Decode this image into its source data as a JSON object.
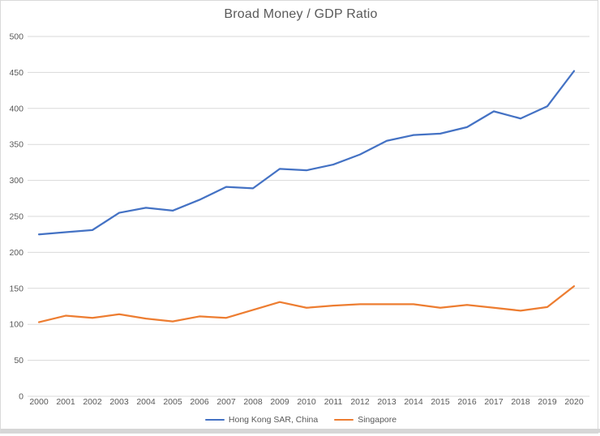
{
  "frame": {
    "background": "#ffffff",
    "border_color": "#d9d9d9",
    "bottom_edge_color": "#d6d6d6"
  },
  "chart_data": {
    "type": "line",
    "title": "Broad Money / GDP Ratio",
    "xlabel": "",
    "ylabel": "",
    "x": [
      "2000",
      "2001",
      "2002",
      "2003",
      "2004",
      "2005",
      "2006",
      "2007",
      "2008",
      "2009",
      "2010",
      "2011",
      "2012",
      "2013",
      "2014",
      "2015",
      "2016",
      "2017",
      "2018",
      "2019",
      "2020"
    ],
    "series": [
      {
        "name": "Hong Kong SAR, China",
        "color": "#4472C4",
        "values": [
          225,
          228,
          231,
          255,
          262,
          258,
          273,
          291,
          289,
          316,
          314,
          322,
          336,
          355,
          363,
          365,
          374,
          396,
          386,
          403,
          452
        ]
      },
      {
        "name": "Singapore",
        "color": "#ED7D31",
        "values": [
          103,
          112,
          109,
          114,
          108,
          104,
          111,
          109,
          120,
          131,
          123,
          126,
          128,
          128,
          128,
          123,
          127,
          123,
          119,
          124,
          153
        ]
      }
    ],
    "ylim": [
      0,
      500
    ],
    "ytick_step": 50,
    "yticks": [
      "0",
      "50",
      "100",
      "150",
      "200",
      "250",
      "300",
      "350",
      "400",
      "450",
      "500"
    ],
    "grid": true,
    "gridline_color": "#d9d9d9",
    "tick_label_color": "#595959",
    "title_color": "#595959",
    "legend_position": "bottom"
  }
}
